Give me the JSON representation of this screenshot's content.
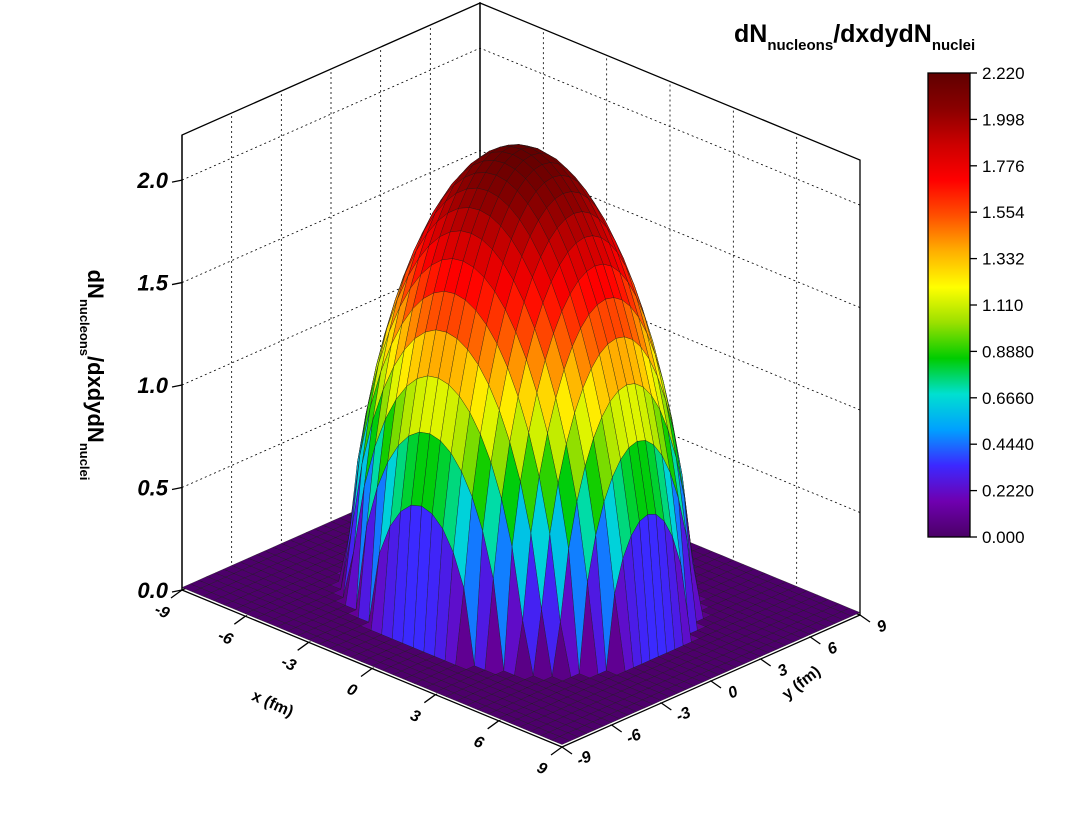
{
  "chart_data": {
    "type": "surface3d",
    "title": {
      "parts": [
        {
          "text": "dN",
          "sub": false
        },
        {
          "text": "nucleons",
          "sub": true
        },
        {
          "text": "/dxdydN",
          "sub": false
        },
        {
          "text": "nuclei",
          "sub": true
        }
      ]
    },
    "zlabel": {
      "parts": [
        {
          "text": "dN",
          "sub": false
        },
        {
          "text": "nucleons",
          "sub": true
        },
        {
          "text": "/dxdydN",
          "sub": false
        },
        {
          "text": "nuclei",
          "sub": true
        }
      ]
    },
    "xlabel": "x (fm)",
    "ylabel": "y (fm)",
    "x_range": [
      -9,
      9
    ],
    "y_range": [
      -9,
      9
    ],
    "z_range": [
      0,
      2.22
    ],
    "x_ticks": [
      "-9",
      "-6",
      "-3",
      "0",
      "3",
      "6",
      "9"
    ],
    "y_ticks": [
      "-9",
      "-6",
      "-3",
      "0",
      "3",
      "6",
      "9"
    ],
    "z_ticks": [
      "0.0",
      "0.5",
      "1.0",
      "1.5",
      "2.0"
    ],
    "surface": {
      "function": "woods_saxon_thickness",
      "peak": 2.2,
      "radius_fm": 6.5,
      "grid_step_fm": 0.5,
      "grid_lines": true
    },
    "colorbar": {
      "min": 0.0,
      "max": 2.22,
      "ticks": [
        "2.220",
        "1.998",
        "1.776",
        "1.554",
        "1.332",
        "1.110",
        "0.8880",
        "0.6660",
        "0.4440",
        "0.2220",
        "0.000"
      ],
      "colormap": [
        "#4a0066",
        "#6f00b0",
        "#3c28ff",
        "#00a0ff",
        "#00e0d0",
        "#00cc00",
        "#9be000",
        "#ffff00",
        "#ffb000",
        "#ff5000",
        "#ff0000",
        "#cc0000",
        "#8a0000",
        "#600000"
      ]
    },
    "grid": true
  }
}
